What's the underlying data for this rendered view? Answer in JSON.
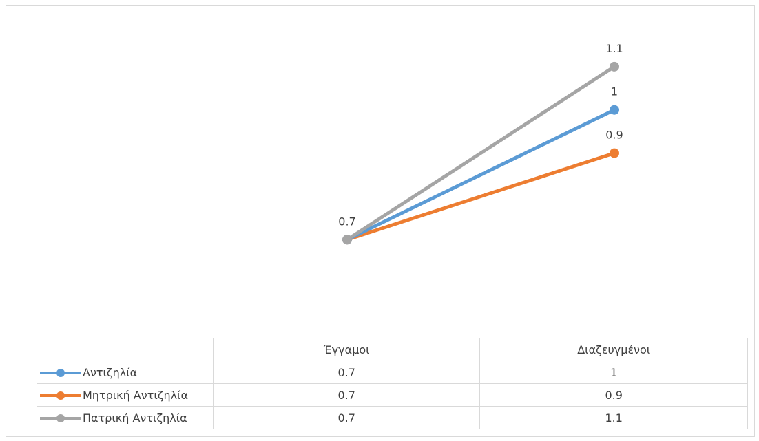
{
  "chart_data": {
    "type": "line",
    "categories": [
      "Έγγαμοι",
      "Διαζευγμένοι"
    ],
    "series": [
      {
        "name": "Αντιζηλία",
        "values": [
          0.7,
          1
        ],
        "labels": [
          "0.7",
          "1"
        ],
        "color": "#5b9bd5"
      },
      {
        "name": "Μητρική Αντιζηλία",
        "values": [
          0.7,
          0.9
        ],
        "labels": [
          "0.7",
          "0.9"
        ],
        "color": "#ed7d31"
      },
      {
        "name": "Πατρική Αντιζηλία",
        "values": [
          0.7,
          1.1
        ],
        "labels": [
          "0.7",
          "1.1"
        ],
        "color": "#a5a5a5"
      }
    ],
    "ylim": [
      0.5,
      1.2
    ],
    "grid": false,
    "data_table": true,
    "legend": "data-table-keys"
  }
}
